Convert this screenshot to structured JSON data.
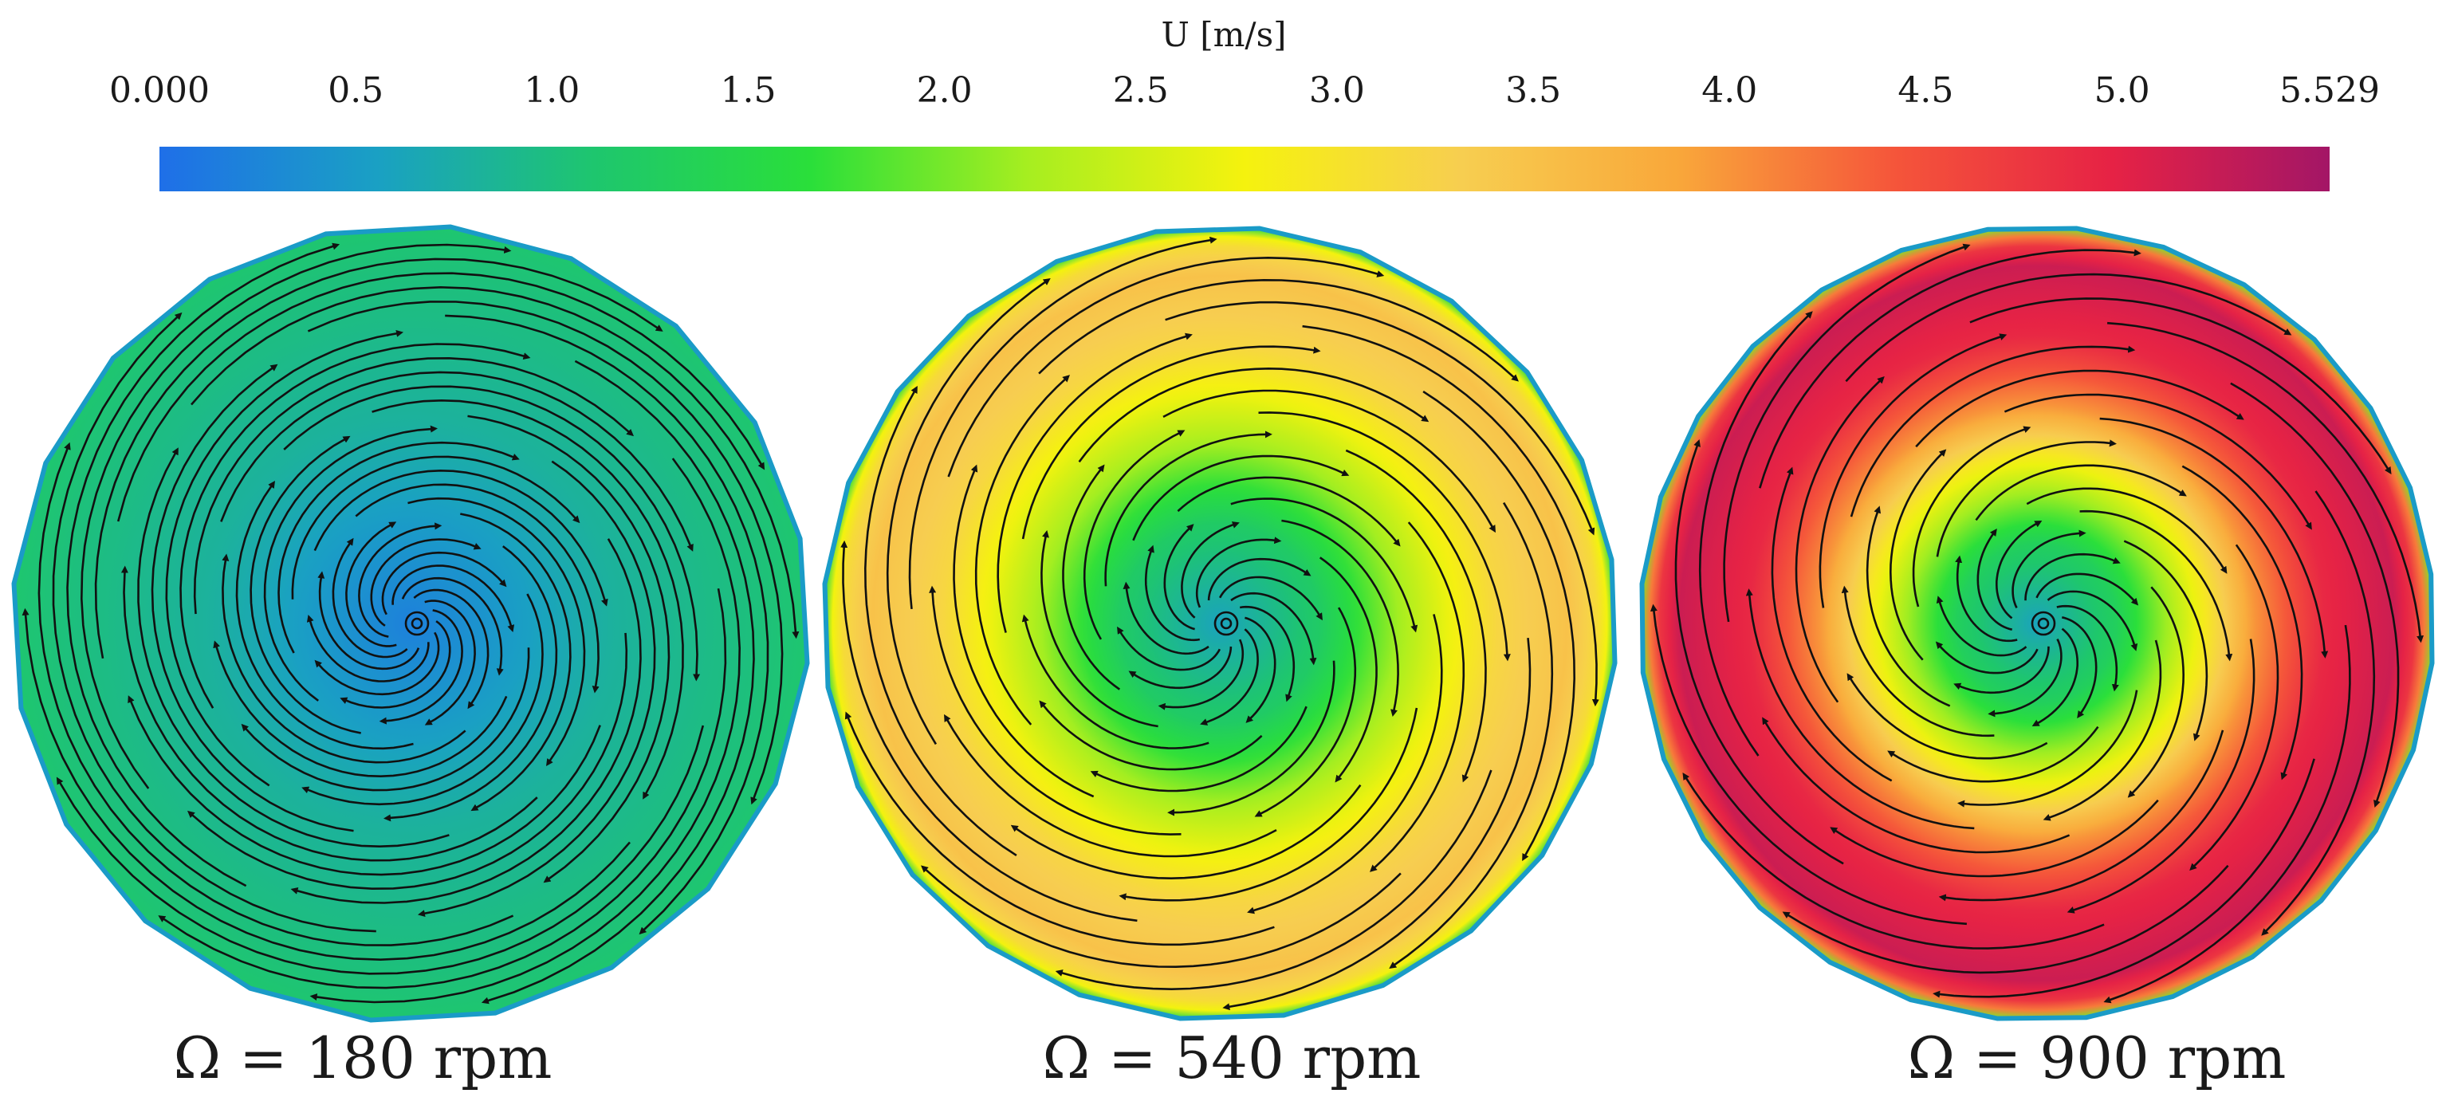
{
  "chart_data": {
    "type": "heatmap",
    "title": "U [m/s]",
    "colorbar": {
      "label": "U [m/s]",
      "range": [
        0.0,
        5.529
      ],
      "ticks": [
        0.0,
        0.5,
        1.0,
        1.5,
        2.0,
        2.5,
        3.0,
        3.5,
        4.0,
        4.5,
        5.0,
        5.529
      ],
      "tick_labels": [
        "0.000",
        "0.5",
        "1.0",
        "1.5",
        "2.0",
        "2.5",
        "3.0",
        "3.5",
        "4.0",
        "4.5",
        "5.0",
        "5.529"
      ],
      "colors": [
        "#1f6fe8",
        "#1aa0c4",
        "#1ec66e",
        "#2adf3a",
        "#a6ee20",
        "#f5f20e",
        "#f7ce50",
        "#f9a73a",
        "#f5553a",
        "#e62245",
        "#a31666"
      ]
    },
    "panels": [
      {
        "caption": "Ω = 180 rpm",
        "rotation_speed_rpm": 180,
        "profile": [
          [
            0.0,
            0.2
          ],
          [
            0.5,
            0.8
          ],
          [
            1.0,
            1.1
          ]
        ],
        "polygon_sides": 20,
        "streamline_turns": 1.9
      },
      {
        "caption": "Ω = 540 rpm",
        "rotation_speed_rpm": 540,
        "profile": [
          [
            0.0,
            0.6
          ],
          [
            0.25,
            1.2
          ],
          [
            0.45,
            2.2
          ],
          [
            0.7,
            3.2
          ],
          [
            0.88,
            3.5
          ],
          [
            0.97,
            3.0
          ],
          [
            1.0,
            1.5
          ]
        ],
        "polygon_sides": 24,
        "streamline_turns": 1.2
      },
      {
        "caption": "Ω = 900 rpm",
        "rotation_speed_rpm": 900,
        "profile": [
          [
            0.0,
            0.6
          ],
          [
            0.2,
            1.3
          ],
          [
            0.4,
            2.7
          ],
          [
            0.55,
            4.0
          ],
          [
            0.72,
            4.9
          ],
          [
            0.9,
            5.2
          ],
          [
            0.97,
            4.6
          ],
          [
            1.0,
            2.0
          ]
        ],
        "polygon_sides": 28,
        "streamline_turns": 1.1
      }
    ]
  }
}
